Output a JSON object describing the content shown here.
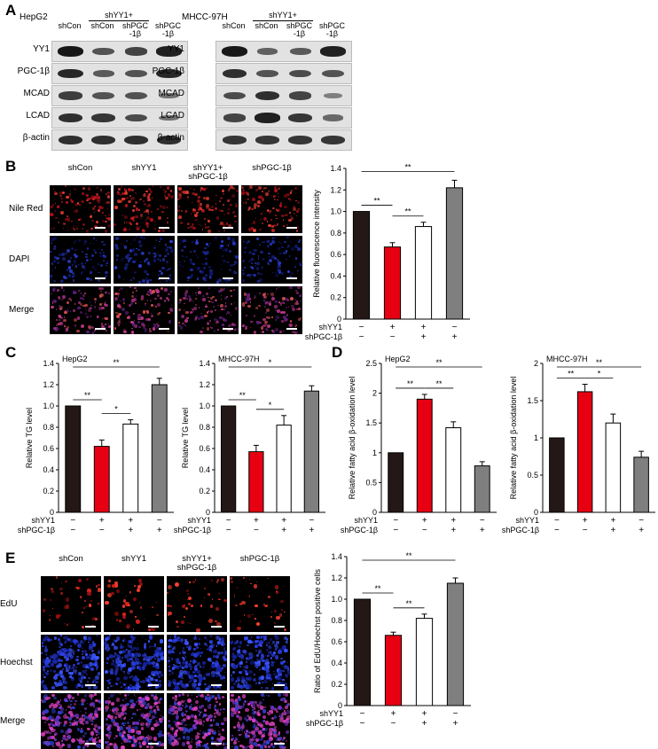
{
  "panelA": {
    "letter": "A",
    "cells": [
      {
        "name": "HepG2",
        "group": "shYY1+",
        "lanes": [
          "shCon",
          "shCon",
          "shPGC\n-1β",
          "shPGC\n-1β"
        ]
      },
      {
        "name": "MHCC-97H",
        "group": "shYY1+",
        "lanes": [
          "shCon",
          "shCon",
          "shPGC\n-1β",
          "shPGC\n-1β"
        ]
      }
    ],
    "proteins": [
      "YY1",
      "PGC-1β",
      "MCAD",
      "LCAD",
      "β-actin"
    ],
    "intensity": [
      [
        [
          0.95,
          0.55,
          0.65,
          0.9
        ],
        [
          0.85,
          0.5,
          0.55,
          0.85
        ],
        [
          0.7,
          0.55,
          0.55,
          0.35
        ],
        [
          0.8,
          0.75,
          0.6,
          0.35
        ],
        [
          0.8,
          0.8,
          0.8,
          0.8
        ]
      ],
      [
        [
          0.95,
          0.45,
          0.5,
          0.9
        ],
        [
          0.8,
          0.55,
          0.6,
          0.55
        ],
        [
          0.6,
          0.8,
          0.65,
          0.25
        ],
        [
          0.65,
          0.9,
          0.75,
          0.4
        ],
        [
          0.75,
          0.75,
          0.75,
          0.75
        ]
      ]
    ]
  },
  "panelB": {
    "letter": "B",
    "columns": [
      "shCon",
      "shYY1",
      "shYY1+\nshPGC-1β",
      "shPGC-1β"
    ],
    "rows": [
      "Nile Red",
      "DAPI",
      "Merge"
    ]
  },
  "panelE": {
    "letter": "E",
    "columns": [
      "shCon",
      "shYY1",
      "shYY1+\nshPGC-1β",
      "shPGC-1β"
    ],
    "rows": [
      "EdU",
      "Hoechst",
      "Merge"
    ]
  },
  "panelC": {
    "letter": "C"
  },
  "panelD": {
    "letter": "D"
  },
  "colors": {
    "bar1": "#231815",
    "bar2": "#e60012",
    "bar3": "#ffffff",
    "bar4": "#7f7f7f"
  },
  "chart_data": [
    {
      "id": "B",
      "type": "bar",
      "ylabel": "Relative fluorescence intensity",
      "ylim": [
        0,
        1.4
      ],
      "yticks": [
        0,
        0.2,
        0.4,
        0.6,
        0.8,
        1.0,
        1.2,
        1.4
      ],
      "values": [
        1.0,
        0.67,
        0.86,
        1.22
      ],
      "errors": [
        0,
        0.04,
        0.04,
        0.07
      ],
      "factors": [
        {
          "label": "shYY1",
          "marks": [
            "−",
            "+",
            "+",
            "−"
          ]
        },
        {
          "label": "shPGC-1β",
          "marks": [
            "−",
            "−",
            "+",
            "+"
          ]
        }
      ],
      "sig": [
        {
          "from": 0,
          "to": 1,
          "label": "**"
        },
        {
          "from": 1,
          "to": 2,
          "label": "**"
        },
        {
          "from": 0,
          "to": 3,
          "label": "**"
        }
      ]
    },
    {
      "id": "C1",
      "type": "bar",
      "title": "HepG2",
      "ylabel": "Relative TG level",
      "ylim": [
        0,
        1.4
      ],
      "yticks": [
        0,
        0.2,
        0.4,
        0.6,
        0.8,
        1.0,
        1.2,
        1.4
      ],
      "values": [
        1.0,
        0.62,
        0.83,
        1.2
      ],
      "errors": [
        0,
        0.06,
        0.04,
        0.06
      ],
      "factors": [
        {
          "label": "shYY1",
          "marks": [
            "−",
            "+",
            "+",
            "−"
          ]
        },
        {
          "label": "shPGC-1β",
          "marks": [
            "−",
            "−",
            "+",
            "+"
          ]
        }
      ],
      "sig": [
        {
          "from": 0,
          "to": 1,
          "label": "**"
        },
        {
          "from": 1,
          "to": 2,
          "label": "*"
        },
        {
          "from": 0,
          "to": 3,
          "label": "**"
        }
      ]
    },
    {
      "id": "C2",
      "type": "bar",
      "title": "MHCC-97H",
      "ylabel": "Relative TG level",
      "ylim": [
        0,
        1.4
      ],
      "yticks": [
        0,
        0.2,
        0.4,
        0.6,
        0.8,
        1.0,
        1.2,
        1.4
      ],
      "values": [
        1.0,
        0.57,
        0.82,
        1.14
      ],
      "errors": [
        0,
        0.06,
        0.09,
        0.05
      ],
      "factors": [
        {
          "label": "shYY1",
          "marks": [
            "−",
            "+",
            "+",
            "−"
          ]
        },
        {
          "label": "shPGC-1β",
          "marks": [
            "−",
            "−",
            "+",
            "+"
          ]
        }
      ],
      "sig": [
        {
          "from": 0,
          "to": 1,
          "label": "**"
        },
        {
          "from": 1,
          "to": 2,
          "label": "*"
        },
        {
          "from": 0,
          "to": 3,
          "label": "*"
        }
      ]
    },
    {
      "id": "D1",
      "type": "bar",
      "title": "HepG2",
      "ylabel": "Relative fatty acid β-oxidation level",
      "ylim": [
        0,
        2.5
      ],
      "yticks": [
        0,
        0.5,
        1.0,
        1.5,
        2.0,
        2.5
      ],
      "values": [
        1.0,
        1.9,
        1.42,
        0.78
      ],
      "errors": [
        0,
        0.08,
        0.1,
        0.07
      ],
      "factors": [
        {
          "label": "shYY1",
          "marks": [
            "−",
            "+",
            "+",
            "−"
          ]
        },
        {
          "label": "shPGC-1β",
          "marks": [
            "−",
            "−",
            "+",
            "+"
          ]
        }
      ],
      "sig": [
        {
          "from": 0,
          "to": 1,
          "label": "**"
        },
        {
          "from": 1,
          "to": 2,
          "label": "**"
        },
        {
          "from": 0,
          "to": 3,
          "label": "**"
        }
      ]
    },
    {
      "id": "D2",
      "type": "bar",
      "title": "MHCC-97H",
      "ylabel": "Relative fatty acid β-oxidation level",
      "ylim": [
        0,
        2.0
      ],
      "yticks": [
        0,
        0.5,
        1.0,
        1.5,
        2.0
      ],
      "values": [
        1.0,
        1.62,
        1.2,
        0.74
      ],
      "errors": [
        0,
        0.1,
        0.12,
        0.08
      ],
      "factors": [
        {
          "label": "shYY1",
          "marks": [
            "−",
            "+",
            "+",
            "−"
          ]
        },
        {
          "label": "shPGC-1β",
          "marks": [
            "−",
            "−",
            "+",
            "+"
          ]
        }
      ],
      "sig": [
        {
          "from": 0,
          "to": 1,
          "label": "**"
        },
        {
          "from": 1,
          "to": 2,
          "label": "*"
        },
        {
          "from": 0,
          "to": 3,
          "label": "**"
        }
      ]
    },
    {
      "id": "E",
      "type": "bar",
      "ylabel": "Ratio of EdU/Hoechst positive cells",
      "ylim": [
        0,
        1.4
      ],
      "yticks": [
        0,
        0.2,
        0.4,
        0.6,
        0.8,
        1.0,
        1.2,
        1.4
      ],
      "values": [
        1.0,
        0.66,
        0.82,
        1.15
      ],
      "errors": [
        0,
        0.03,
        0.04,
        0.05
      ],
      "factors": [
        {
          "label": "shYY1",
          "marks": [
            "−",
            "+",
            "+",
            "−"
          ]
        },
        {
          "label": "shPGC-1β",
          "marks": [
            "−",
            "−",
            "+",
            "+"
          ]
        }
      ],
      "sig": [
        {
          "from": 0,
          "to": 1,
          "label": "**"
        },
        {
          "from": 1,
          "to": 2,
          "label": "**"
        },
        {
          "from": 0,
          "to": 3,
          "label": "**"
        }
      ]
    }
  ]
}
